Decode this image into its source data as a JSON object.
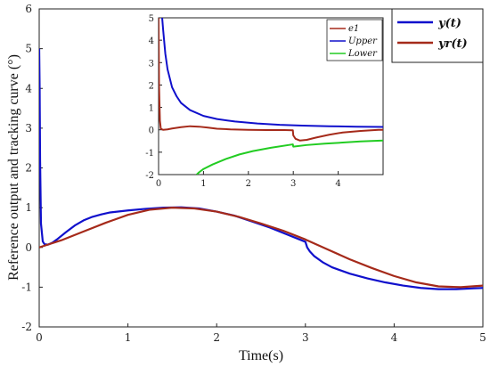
{
  "chart_data": [
    {
      "type": "line",
      "xlabel": "Time(s)",
      "ylabel": "Reference output and tracking curve (°)",
      "xlim": [
        0,
        5
      ],
      "ylim": [
        -2,
        6
      ],
      "xticks": [
        "0",
        "1",
        "2",
        "3",
        "4",
        "5"
      ],
      "yticks": [
        "-2",
        "-1",
        "0",
        "1",
        "2",
        "3",
        "4",
        "5",
        "6"
      ],
      "grid": false,
      "legend_position": "top-right",
      "series": [
        {
          "name": "y(t)",
          "color": "#1010cc",
          "x": [
            0,
            0.005,
            0.01,
            0.02,
            0.04,
            0.06,
            0.1,
            0.15,
            0.2,
            0.3,
            0.4,
            0.5,
            0.6,
            0.7,
            0.8,
            1.0,
            1.2,
            1.4,
            1.6,
            1.8,
            2.0,
            2.2,
            2.4,
            2.6,
            2.8,
            2.99,
            3.0,
            3.02,
            3.05,
            3.1,
            3.2,
            3.3,
            3.5,
            3.7,
            3.9,
            4.1,
            4.3,
            4.5,
            4.7,
            4.9,
            5.0
          ],
          "y": [
            5.0,
            4.0,
            2.2,
            0.6,
            0.15,
            0.08,
            0.07,
            0.12,
            0.2,
            0.38,
            0.55,
            0.68,
            0.77,
            0.83,
            0.88,
            0.93,
            0.97,
            1.0,
            1.01,
            0.98,
            0.9,
            0.8,
            0.65,
            0.5,
            0.32,
            0.15,
            0.14,
            0.0,
            -0.1,
            -0.22,
            -0.38,
            -0.5,
            -0.66,
            -0.78,
            -0.88,
            -0.96,
            -1.02,
            -1.05,
            -1.05,
            -1.03,
            -1.02
          ]
        },
        {
          "name": "yr(t)",
          "color": "#a52a1a",
          "x": [
            0,
            0.25,
            0.5,
            0.75,
            1.0,
            1.25,
            1.5,
            1.75,
            2.0,
            2.25,
            2.5,
            2.75,
            3.0,
            3.25,
            3.5,
            3.75,
            4.0,
            4.25,
            4.5,
            4.75,
            5.0
          ],
          "y": [
            0.0,
            0.18,
            0.4,
            0.62,
            0.82,
            0.95,
            1.0,
            0.98,
            0.9,
            0.77,
            0.6,
            0.42,
            0.2,
            -0.05,
            -0.3,
            -0.52,
            -0.72,
            -0.88,
            -0.98,
            -1.0,
            -0.96
          ]
        }
      ]
    },
    {
      "type": "line",
      "xlim": [
        0,
        5
      ],
      "ylim": [
        -2,
        5
      ],
      "xticks": [
        "0",
        "1",
        "2",
        "3",
        "4"
      ],
      "yticks": [
        "-2",
        "-1",
        "0",
        "1",
        "2",
        "3",
        "4",
        "5"
      ],
      "grid": false,
      "legend_position": "top-right",
      "series": [
        {
          "name": "e1",
          "color": "#a52a1a",
          "x": [
            0,
            0.01,
            0.03,
            0.05,
            0.1,
            0.2,
            0.3,
            0.5,
            0.7,
            0.9,
            1.1,
            1.3,
            1.6,
            2.0,
            2.4,
            2.8,
            2.99,
            3.0,
            3.05,
            3.15,
            3.3,
            3.5,
            3.8,
            4.1,
            4.5,
            4.9,
            5.0
          ],
          "y": [
            5.0,
            2.0,
            0.4,
            0.05,
            0.0,
            0.02,
            0.06,
            0.12,
            0.16,
            0.14,
            0.1,
            0.05,
            0.02,
            0.0,
            -0.01,
            -0.01,
            -0.02,
            -0.25,
            -0.4,
            -0.48,
            -0.45,
            -0.35,
            -0.22,
            -0.12,
            -0.05,
            0.0,
            0.0
          ]
        },
        {
          "name": "Upper",
          "color": "#1010cc",
          "x": [
            0.08,
            0.1,
            0.15,
            0.2,
            0.3,
            0.4,
            0.5,
            0.7,
            1.0,
            1.3,
            1.7,
            2.2,
            2.7,
            3.2,
            3.8,
            4.4,
            5.0
          ],
          "y": [
            5.0,
            4.5,
            3.4,
            2.7,
            1.9,
            1.5,
            1.2,
            0.88,
            0.62,
            0.48,
            0.37,
            0.28,
            0.22,
            0.19,
            0.16,
            0.14,
            0.13
          ]
        },
        {
          "name": "Lower",
          "color": "#22cc22",
          "x": [
            0.85,
            0.9,
            1.0,
            1.2,
            1.5,
            1.8,
            2.1,
            2.5,
            2.99,
            3.0,
            3.3,
            3.7,
            4.1,
            4.5,
            5.0
          ],
          "y": [
            -2.0,
            -1.9,
            -1.75,
            -1.55,
            -1.3,
            -1.1,
            -0.95,
            -0.8,
            -0.65,
            -0.75,
            -0.68,
            -0.62,
            -0.57,
            -0.52,
            -0.48
          ]
        }
      ]
    }
  ]
}
